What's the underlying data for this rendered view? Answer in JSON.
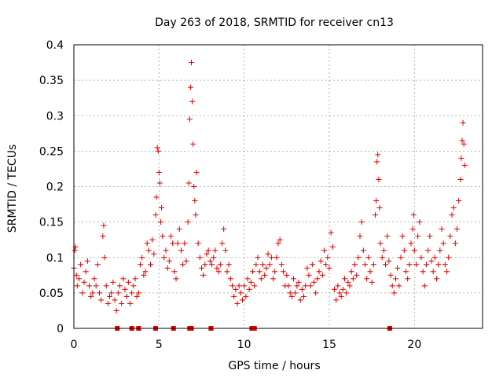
{
  "chart_data": {
    "type": "scatter",
    "title": "Day 263 of 2018, SRMTID for receiver cn13",
    "xlabel": "GPS time / hours",
    "ylabel": "SRMTID / TECUs",
    "xlim": [
      0,
      24
    ],
    "ylim": [
      0,
      0.4
    ],
    "x_ticks": [
      0,
      5,
      10,
      15,
      20
    ],
    "x_tick_labels": [
      "0",
      "5",
      "10",
      "15",
      "20"
    ],
    "y_ticks": [
      0,
      0.05,
      0.1,
      0.15,
      0.2,
      0.25,
      0.3,
      0.35,
      0.4
    ],
    "y_tick_labels": [
      "0",
      "0.05",
      "0.1",
      "0.15",
      "0.2",
      "0.25",
      "0.3",
      "0.35",
      "0.4"
    ],
    "grid": true,
    "marker": "+",
    "series_color": "#e00000",
    "zero_markers_x": [
      2.55,
      3.4,
      3.8,
      4.8,
      5.85,
      6.8,
      6.9,
      8.05,
      10.45,
      10.6,
      18.55
    ],
    "series": [
      {
        "name": "SRMTID",
        "points": [
          [
            0.0,
            0.085
          ],
          [
            0.05,
            0.11
          ],
          [
            0.1,
            0.115
          ],
          [
            0.15,
            0.075
          ],
          [
            0.2,
            0.06
          ],
          [
            0.3,
            0.07
          ],
          [
            0.4,
            0.09
          ],
          [
            0.5,
            0.05
          ],
          [
            0.6,
            0.065
          ],
          [
            0.7,
            0.08
          ],
          [
            0.8,
            0.095
          ],
          [
            0.9,
            0.06
          ],
          [
            1.0,
            0.045
          ],
          [
            1.1,
            0.05
          ],
          [
            1.2,
            0.07
          ],
          [
            1.3,
            0.06
          ],
          [
            1.4,
            0.09
          ],
          [
            1.5,
            0.05
          ],
          [
            1.6,
            0.04
          ],
          [
            1.7,
            0.13
          ],
          [
            1.75,
            0.145
          ],
          [
            1.8,
            0.1
          ],
          [
            1.9,
            0.06
          ],
          [
            2.0,
            0.035
          ],
          [
            2.1,
            0.045
          ],
          [
            2.2,
            0.05
          ],
          [
            2.3,
            0.065
          ],
          [
            2.4,
            0.04
          ],
          [
            2.5,
            0.025
          ],
          [
            2.6,
            0.05
          ],
          [
            2.7,
            0.06
          ],
          [
            2.8,
            0.035
          ],
          [
            2.9,
            0.07
          ],
          [
            3.0,
            0.055
          ],
          [
            3.1,
            0.045
          ],
          [
            3.2,
            0.065
          ],
          [
            3.3,
            0.035
          ],
          [
            3.4,
            0.05
          ],
          [
            3.5,
            0.06
          ],
          [
            3.6,
            0.07
          ],
          [
            3.7,
            0.045
          ],
          [
            3.8,
            0.05
          ],
          [
            3.9,
            0.09
          ],
          [
            4.0,
            0.1
          ],
          [
            4.1,
            0.075
          ],
          [
            4.2,
            0.08
          ],
          [
            4.3,
            0.12
          ],
          [
            4.4,
            0.11
          ],
          [
            4.5,
            0.09
          ],
          [
            4.6,
            0.125
          ],
          [
            4.7,
            0.105
          ],
          [
            4.8,
            0.16
          ],
          [
            4.85,
            0.185
          ],
          [
            4.9,
            0.255
          ],
          [
            4.95,
            0.25
          ],
          [
            5.0,
            0.22
          ],
          [
            5.05,
            0.205
          ],
          [
            5.1,
            0.15
          ],
          [
            5.15,
            0.17
          ],
          [
            5.2,
            0.13
          ],
          [
            5.3,
            0.1
          ],
          [
            5.4,
            0.11
          ],
          [
            5.5,
            0.085
          ],
          [
            5.6,
            0.095
          ],
          [
            5.7,
            0.13
          ],
          [
            5.8,
            0.12
          ],
          [
            5.9,
            0.08
          ],
          [
            6.0,
            0.07
          ],
          [
            6.1,
            0.12
          ],
          [
            6.2,
            0.14
          ],
          [
            6.3,
            0.11
          ],
          [
            6.4,
            0.09
          ],
          [
            6.5,
            0.12
          ],
          [
            6.6,
            0.095
          ],
          [
            6.7,
            0.15
          ],
          [
            6.75,
            0.205
          ],
          [
            6.8,
            0.295
          ],
          [
            6.85,
            0.34
          ],
          [
            6.9,
            0.375
          ],
          [
            6.95,
            0.32
          ],
          [
            7.0,
            0.26
          ],
          [
            7.05,
            0.2
          ],
          [
            7.1,
            0.18
          ],
          [
            7.15,
            0.16
          ],
          [
            7.2,
            0.22
          ],
          [
            7.3,
            0.12
          ],
          [
            7.4,
            0.1
          ],
          [
            7.5,
            0.085
          ],
          [
            7.6,
            0.075
          ],
          [
            7.7,
            0.09
          ],
          [
            7.8,
            0.105
          ],
          [
            7.9,
            0.11
          ],
          [
            8.0,
            0.095
          ],
          [
            8.1,
            0.09
          ],
          [
            8.2,
            0.1
          ],
          [
            8.3,
            0.11
          ],
          [
            8.4,
            0.085
          ],
          [
            8.5,
            0.08
          ],
          [
            8.6,
            0.09
          ],
          [
            8.7,
            0.12
          ],
          [
            8.8,
            0.14
          ],
          [
            8.9,
            0.11
          ],
          [
            9.0,
            0.08
          ],
          [
            9.1,
            0.09
          ],
          [
            9.2,
            0.07
          ],
          [
            9.3,
            0.06
          ],
          [
            9.4,
            0.045
          ],
          [
            9.5,
            0.055
          ],
          [
            9.6,
            0.035
          ],
          [
            9.7,
            0.06
          ],
          [
            9.8,
            0.05
          ],
          [
            9.9,
            0.04
          ],
          [
            10.0,
            0.06
          ],
          [
            10.1,
            0.045
          ],
          [
            10.2,
            0.07
          ],
          [
            10.3,
            0.055
          ],
          [
            10.4,
            0.065
          ],
          [
            10.5,
            0.08
          ],
          [
            10.6,
            0.06
          ],
          [
            10.7,
            0.09
          ],
          [
            10.8,
            0.1
          ],
          [
            10.9,
            0.08
          ],
          [
            11.0,
            0.07
          ],
          [
            11.1,
            0.09
          ],
          [
            11.2,
            0.075
          ],
          [
            11.3,
            0.085
          ],
          [
            11.4,
            0.105
          ],
          [
            11.5,
            0.09
          ],
          [
            11.6,
            0.1
          ],
          [
            11.7,
            0.07
          ],
          [
            11.8,
            0.08
          ],
          [
            11.9,
            0.1
          ],
          [
            12.0,
            0.12
          ],
          [
            12.1,
            0.125
          ],
          [
            12.2,
            0.09
          ],
          [
            12.3,
            0.08
          ],
          [
            12.4,
            0.06
          ],
          [
            12.5,
            0.075
          ],
          [
            12.6,
            0.06
          ],
          [
            12.7,
            0.05
          ],
          [
            12.8,
            0.045
          ],
          [
            12.9,
            0.07
          ],
          [
            13.0,
            0.05
          ],
          [
            13.1,
            0.06
          ],
          [
            13.2,
            0.065
          ],
          [
            13.3,
            0.04
          ],
          [
            13.4,
            0.055
          ],
          [
            13.5,
            0.045
          ],
          [
            13.6,
            0.06
          ],
          [
            13.7,
            0.085
          ],
          [
            13.8,
            0.075
          ],
          [
            13.9,
            0.06
          ],
          [
            14.0,
            0.09
          ],
          [
            14.1,
            0.065
          ],
          [
            14.2,
            0.05
          ],
          [
            14.3,
            0.07
          ],
          [
            14.4,
            0.08
          ],
          [
            14.5,
            0.095
          ],
          [
            14.6,
            0.075
          ],
          [
            14.7,
            0.11
          ],
          [
            14.8,
            0.09
          ],
          [
            14.9,
            0.1
          ],
          [
            15.0,
            0.085
          ],
          [
            15.1,
            0.135
          ],
          [
            15.2,
            0.115
          ],
          [
            15.3,
            0.055
          ],
          [
            15.4,
            0.04
          ],
          [
            15.5,
            0.06
          ],
          [
            15.6,
            0.05
          ],
          [
            15.7,
            0.045
          ],
          [
            15.8,
            0.055
          ],
          [
            15.9,
            0.07
          ],
          [
            16.0,
            0.05
          ],
          [
            16.1,
            0.065
          ],
          [
            16.2,
            0.06
          ],
          [
            16.3,
            0.08
          ],
          [
            16.4,
            0.07
          ],
          [
            16.5,
            0.09
          ],
          [
            16.6,
            0.075
          ],
          [
            16.7,
            0.1
          ],
          [
            16.8,
            0.13
          ],
          [
            16.9,
            0.15
          ],
          [
            17.0,
            0.11
          ],
          [
            17.1,
            0.09
          ],
          [
            17.2,
            0.07
          ],
          [
            17.3,
            0.1
          ],
          [
            17.4,
            0.08
          ],
          [
            17.5,
            0.065
          ],
          [
            17.6,
            0.09
          ],
          [
            17.7,
            0.16
          ],
          [
            17.75,
            0.18
          ],
          [
            17.8,
            0.235
          ],
          [
            17.85,
            0.245
          ],
          [
            17.9,
            0.21
          ],
          [
            17.95,
            0.17
          ],
          [
            18.0,
            0.12
          ],
          [
            18.1,
            0.1
          ],
          [
            18.2,
            0.11
          ],
          [
            18.3,
            0.09
          ],
          [
            18.4,
            0.13
          ],
          [
            18.5,
            0.095
          ],
          [
            18.6,
            0.075
          ],
          [
            18.7,
            0.06
          ],
          [
            18.8,
            0.05
          ],
          [
            18.9,
            0.07
          ],
          [
            19.0,
            0.085
          ],
          [
            19.1,
            0.06
          ],
          [
            19.2,
            0.1
          ],
          [
            19.3,
            0.13
          ],
          [
            19.4,
            0.11
          ],
          [
            19.5,
            0.08
          ],
          [
            19.6,
            0.07
          ],
          [
            19.7,
            0.09
          ],
          [
            19.8,
            0.12
          ],
          [
            19.9,
            0.14
          ],
          [
            19.95,
            0.16
          ],
          [
            20.0,
            0.11
          ],
          [
            20.1,
            0.09
          ],
          [
            20.2,
            0.13
          ],
          [
            20.3,
            0.15
          ],
          [
            20.4,
            0.1
          ],
          [
            20.5,
            0.08
          ],
          [
            20.6,
            0.06
          ],
          [
            20.7,
            0.09
          ],
          [
            20.8,
            0.11
          ],
          [
            20.9,
            0.13
          ],
          [
            21.0,
            0.095
          ],
          [
            21.1,
            0.08
          ],
          [
            21.2,
            0.1
          ],
          [
            21.3,
            0.07
          ],
          [
            21.4,
            0.09
          ],
          [
            21.5,
            0.11
          ],
          [
            21.6,
            0.14
          ],
          [
            21.7,
            0.12
          ],
          [
            21.8,
            0.09
          ],
          [
            21.9,
            0.08
          ],
          [
            22.0,
            0.1
          ],
          [
            22.1,
            0.13
          ],
          [
            22.2,
            0.16
          ],
          [
            22.3,
            0.17
          ],
          [
            22.4,
            0.12
          ],
          [
            22.5,
            0.14
          ],
          [
            22.6,
            0.18
          ],
          [
            22.7,
            0.21
          ],
          [
            22.75,
            0.24
          ],
          [
            22.8,
            0.265
          ],
          [
            22.85,
            0.29
          ],
          [
            22.9,
            0.26
          ],
          [
            22.95,
            0.23
          ]
        ]
      }
    ]
  }
}
